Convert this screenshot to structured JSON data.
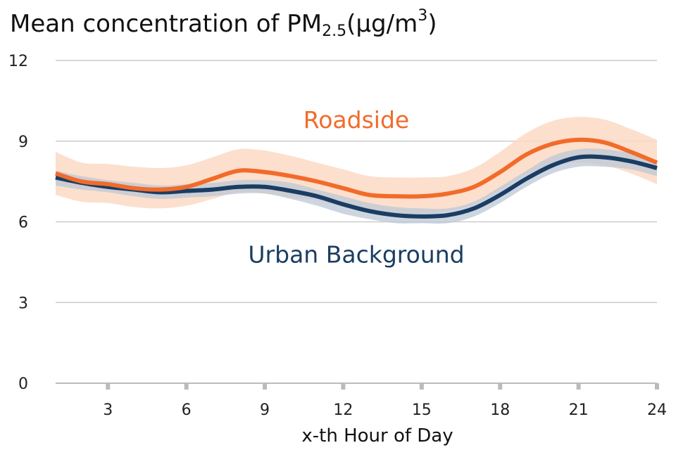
{
  "chart_data": {
    "type": "line",
    "title_parts": {
      "main": "Mean concentration of PM",
      "sub": "2.5",
      "unit_open": "(μg/m",
      "sup": "3",
      "unit_close": ")"
    },
    "xlabel": "x-th Hour of Day",
    "ylabel": "",
    "xlim": [
      1,
      24
    ],
    "ylim": [
      0,
      12
    ],
    "xticks": [
      3,
      6,
      9,
      12,
      15,
      18,
      21,
      24
    ],
    "yticks": [
      0,
      3,
      6,
      9,
      12
    ],
    "grid": "horizontal",
    "x": [
      1,
      2,
      3,
      4,
      5,
      6,
      7,
      8,
      9,
      10,
      11,
      12,
      13,
      14,
      15,
      16,
      17,
      18,
      19,
      20,
      21,
      22,
      23,
      24
    ],
    "series": [
      {
        "name": "Roadside",
        "color": "#f26b2a",
        "band_color": "#fcd9c4",
        "values": [
          7.8,
          7.5,
          7.4,
          7.25,
          7.2,
          7.3,
          7.6,
          7.9,
          7.85,
          7.7,
          7.5,
          7.25,
          7.0,
          6.95,
          6.95,
          7.05,
          7.3,
          7.85,
          8.5,
          8.9,
          9.05,
          8.95,
          8.6,
          8.2
        ],
        "upper": [
          8.6,
          8.2,
          8.15,
          8.05,
          8.0,
          8.1,
          8.4,
          8.7,
          8.65,
          8.45,
          8.2,
          7.95,
          7.7,
          7.65,
          7.65,
          7.7,
          8.0,
          8.6,
          9.3,
          9.75,
          9.9,
          9.8,
          9.45,
          9.05
        ],
        "lower": [
          7.0,
          6.75,
          6.7,
          6.55,
          6.5,
          6.6,
          6.85,
          7.1,
          7.05,
          6.9,
          6.8,
          6.55,
          6.35,
          6.3,
          6.3,
          6.4,
          6.65,
          7.15,
          7.75,
          8.1,
          8.2,
          8.1,
          7.8,
          7.4
        ]
      },
      {
        "name": "Urban Background",
        "color": "#1a3d63",
        "band_color": "#bcc8d6",
        "values": [
          7.65,
          7.45,
          7.3,
          7.2,
          7.1,
          7.15,
          7.2,
          7.3,
          7.3,
          7.15,
          6.95,
          6.65,
          6.4,
          6.25,
          6.2,
          6.25,
          6.5,
          7.0,
          7.6,
          8.1,
          8.4,
          8.4,
          8.25,
          8.0
        ],
        "upper": [
          7.9,
          7.7,
          7.55,
          7.45,
          7.35,
          7.4,
          7.45,
          7.55,
          7.55,
          7.45,
          7.2,
          6.95,
          6.7,
          6.55,
          6.5,
          6.5,
          6.75,
          7.3,
          7.9,
          8.45,
          8.7,
          8.7,
          8.55,
          8.3
        ],
        "lower": [
          7.35,
          7.2,
          7.1,
          6.95,
          6.85,
          6.9,
          6.95,
          7.05,
          7.05,
          6.85,
          6.6,
          6.3,
          6.1,
          5.95,
          5.95,
          5.95,
          6.2,
          6.7,
          7.3,
          7.8,
          8.05,
          8.05,
          7.95,
          7.7
        ]
      }
    ],
    "annotations": [
      {
        "text": "Roadside",
        "x": 12.5,
        "y": 9.8,
        "color": "#f26b2a"
      },
      {
        "text": "Urban Background",
        "x": 12.5,
        "y": 4.8,
        "color": "#1a3d63"
      }
    ]
  }
}
